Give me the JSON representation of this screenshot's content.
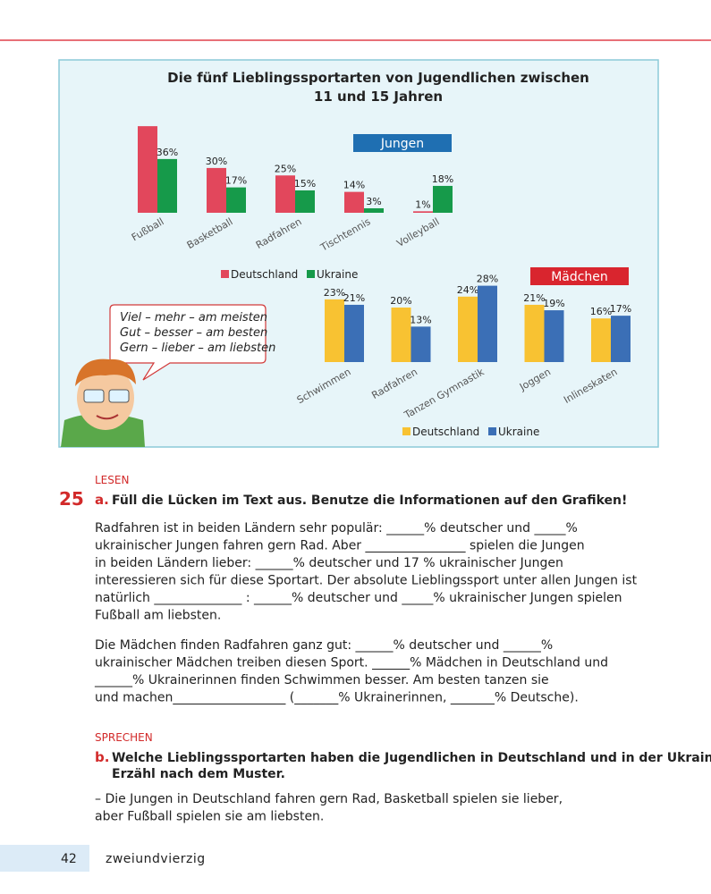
{
  "figure_title_lines": [
    "Die fünf Lieblingssportarten von Jugendlichen zwischen",
    "11 und 15 Jahren"
  ],
  "chart_data": [
    {
      "type": "bar",
      "label": "Jungen",
      "categories": [
        "Fußball",
        "Basketball",
        "Radfahren",
        "Tischtennis",
        "Volleyball"
      ],
      "series": [
        {
          "name": "Deutschland",
          "color": "#e2475c",
          "values": [
            58,
            30,
            25,
            14,
            1
          ],
          "value_labels": [
            null,
            "30%",
            "25%",
            "14%",
            "1%"
          ]
        },
        {
          "name": "Ukraine",
          "color": "#169a4a",
          "values": [
            36,
            17,
            15,
            3,
            18
          ],
          "value_labels": [
            "36%",
            "17%",
            "15%",
            "3%",
            "18%"
          ]
        }
      ]
    },
    {
      "type": "bar",
      "label": "Mädchen",
      "categories": [
        "Schwimmen",
        "Radfahren",
        "Tanzen Gymnastik",
        "Joggen",
        "Inlineskaten"
      ],
      "series": [
        {
          "name": "Deutschland",
          "color": "#f8c232",
          "values": [
            23,
            20,
            24,
            21,
            16
          ],
          "value_labels": [
            "23%",
            "20%",
            "24%",
            "21%",
            "16%"
          ]
        },
        {
          "name": "Ukraine",
          "color": "#3b6fb6",
          "values": [
            21,
            13,
            28,
            19,
            17
          ],
          "value_labels": [
            "21%",
            "13%",
            "28%",
            "19%",
            "17%"
          ]
        }
      ]
    }
  ],
  "speech_bubble": [
    "Viel – mehr – am meisten",
    "Gut – besser – am besten",
    "Gern – lieber – am liebsten"
  ],
  "exercise": {
    "section_a": "LESEN",
    "number": "25",
    "a_label": "a.",
    "a_text": "Füll die Lücken im Text aus. Benutze die Informationen auf den Grafiken!",
    "paragraph_1": [
      "Radfahren ist in beiden Ländern sehr populär: ______% deutscher und _____%",
      "ukrainischer Jungen fahren gern Rad. Aber ________________ spielen die Jungen",
      "in beiden Ländern lieber: ______% deutscher und 17 % ukrainischer Jungen",
      "interessieren sich für diese Sportart. Der absolute Lieblingssport unter allen Jungen ist",
      "natürlich ______________ : ______% deutscher und _____% ukrainischer Jungen spielen",
      "Fußball am liebsten."
    ],
    "paragraph_2": [
      "Die Mädchen finden Radfahren ganz gut: ______% deutscher und ______%",
      "ukrainischer Mädchen treiben diesen Sport. ______% Mädchen in Deutschland und",
      "______% Ukrainerinnen finden Schwimmen besser. Am besten tanzen sie",
      "und machen__________________ (_______% Ukrainerinnen, _______% Deutsche)."
    ],
    "section_b": "SPRECHEN",
    "b_label": "b.",
    "b_text": [
      "Welche Lieblingssportarten haben die Jugendlichen in Deutschland und in der Ukraine?",
      "Erzähl nach dem Muster."
    ],
    "example": [
      "– Die Jungen in Deutschland fahren gern Rad, Basketball spielen sie lieber,",
      "aber Fußball spielen sie am liebsten."
    ]
  },
  "footer": {
    "page": "42",
    "word": "zweiundvierzig"
  }
}
